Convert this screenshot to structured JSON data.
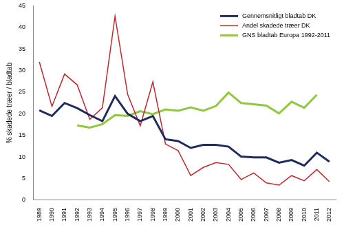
{
  "chart_data": {
    "type": "line",
    "y_label": "% skadede træer / bladtab",
    "categories": [
      "1989",
      "1990",
      "1991",
      "1992",
      "1993",
      "1994",
      "1995",
      "1996",
      "1997",
      "1998",
      "1999",
      "2000",
      "2001",
      "2002",
      "2003",
      "2004",
      "2005",
      "2006",
      "2007",
      "2008",
      "2009",
      "2010",
      "2011",
      "2012"
    ],
    "series": [
      {
        "name": "Gennemsnitligt bladtab DK",
        "color": "#1f2b5e",
        "values": [
          20.8,
          19.5,
          22.5,
          21.3,
          19.7,
          18.3,
          24.1,
          20.0,
          18.3,
          19.5,
          14.1,
          13.7,
          12.1,
          12.8,
          12.8,
          12.4,
          10.1,
          9.9,
          9.9,
          8.7,
          9.3,
          8.0,
          11.0,
          8.9
        ]
      },
      {
        "name": "Andel skadede træer DK",
        "color": "#c0272d",
        "values": [
          32.0,
          21.7,
          29.2,
          26.7,
          18.7,
          21.4,
          42.6,
          24.5,
          17.2,
          27.4,
          13.0,
          11.5,
          5.7,
          7.6,
          8.7,
          8.3,
          4.8,
          6.3,
          4.0,
          3.5,
          5.7,
          4.5,
          7.1,
          4.3
        ]
      },
      {
        "name": "GNS bladtab Europa 1992-2011",
        "color": "#92c83e",
        "values": [
          null,
          null,
          null,
          17.3,
          16.8,
          17.6,
          19.7,
          19.5,
          20.6,
          19.9,
          21.0,
          20.7,
          21.5,
          20.7,
          21.8,
          24.9,
          22.5,
          22.2,
          21.9,
          20.1,
          22.8,
          21.4,
          24.4,
          null
        ]
      }
    ],
    "ylim": [
      0,
      45
    ],
    "yticks": [
      0,
      5,
      10,
      15,
      20,
      25,
      30,
      35,
      40,
      45
    ],
    "grid": false,
    "legend": "top-right"
  }
}
